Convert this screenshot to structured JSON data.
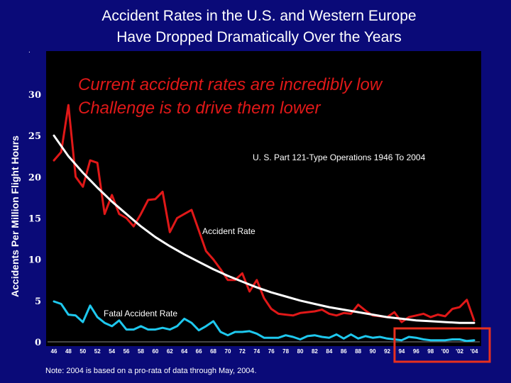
{
  "slide": {
    "title_line1": "Accident Rates in the U.S. and Western Europe",
    "title_line2": "Have Dropped Dramatically Over the Years",
    "mark": "."
  },
  "colors": {
    "background": "#0a0a78",
    "plot_background": "#000000",
    "accident_rate": "#e01818",
    "trend": "#ffffff",
    "fatal_rate": "#1ec8ee",
    "highlight_box": "#e8301e",
    "callout_text": "#e01818"
  },
  "chart_data": {
    "type": "line",
    "ylabel": "Accidents Per Million Flight Hours",
    "xlabel": "",
    "ylim": [
      0,
      30
    ],
    "yticks": [
      "0",
      "5",
      "10",
      "15",
      "20",
      "25",
      "30"
    ],
    "x_range": [
      1946,
      2004
    ],
    "xtick_labels": [
      "46",
      "48",
      "50",
      "52",
      "54",
      "56",
      "58",
      "60",
      "62",
      "64",
      "66",
      "68",
      "70",
      "72",
      "74",
      "76",
      "78",
      "80",
      "82",
      "84",
      "86",
      "88",
      "90",
      "92",
      "94",
      "96",
      "98",
      "'00",
      "'02",
      "'04"
    ],
    "callout_line1": "Current accident rates are incredibly low",
    "callout_line2": "Challenge is to drive them lower",
    "subtitle": "U. S. Part 121-Type Operations 1946 To 2004",
    "accident_label": "Accident Rate",
    "fatal_label": "Fatal Accident Rate",
    "note": "Note: 2004 is based on a pro-rata of data through May, 2004.",
    "highlight_years": [
      1994,
      2004
    ],
    "series": [
      {
        "key": "accident_rate",
        "x": [
          1946,
          1947,
          1948,
          1949,
          1950,
          1951,
          1952,
          1953,
          1954,
          1955,
          1956,
          1957,
          1958,
          1959,
          1960,
          1961,
          1962,
          1963,
          1964,
          1965,
          1966,
          1967,
          1968,
          1969,
          1970,
          1971,
          1972,
          1973,
          1974,
          1975,
          1976,
          1977,
          1978,
          1979,
          1980,
          1981,
          1982,
          1983,
          1984,
          1985,
          1986,
          1987,
          1988,
          1989,
          1990,
          1991,
          1992,
          1993,
          1994,
          1995,
          1996,
          1997,
          1998,
          1999,
          2000,
          2001,
          2002,
          2003,
          2004
        ],
        "values": [
          22.0,
          23.0,
          28.7,
          20.0,
          18.8,
          22.0,
          21.7,
          15.5,
          17.8,
          15.5,
          15.0,
          14.0,
          15.5,
          17.2,
          17.3,
          18.2,
          13.3,
          15.0,
          15.5,
          16.0,
          13.5,
          11.0,
          10.0,
          8.8,
          7.5,
          7.5,
          8.3,
          6.1,
          7.5,
          5.3,
          4.0,
          3.4,
          3.3,
          3.2,
          3.5,
          3.6,
          3.7,
          3.9,
          3.4,
          3.2,
          3.5,
          3.4,
          4.5,
          3.8,
          3.2,
          3.1,
          3.0,
          3.6,
          2.4,
          3.0,
          3.2,
          3.4,
          3.0,
          3.3,
          3.1,
          4.0,
          4.2,
          5.1,
          2.6
        ]
      },
      {
        "key": "trend",
        "x": [
          1946,
          1948,
          1950,
          1952,
          1954,
          1956,
          1958,
          1960,
          1962,
          1964,
          1966,
          1968,
          1970,
          1972,
          1974,
          1976,
          1978,
          1980,
          1982,
          1984,
          1986,
          1988,
          1990,
          1992,
          1994,
          1996,
          1998,
          2000,
          2002,
          2004
        ],
        "values": [
          25.0,
          22.5,
          20.5,
          18.7,
          17.0,
          15.5,
          14.0,
          12.7,
          11.6,
          10.6,
          9.7,
          8.8,
          8.0,
          7.3,
          6.6,
          6.0,
          5.5,
          5.0,
          4.6,
          4.2,
          3.9,
          3.6,
          3.3,
          3.0,
          2.8,
          2.6,
          2.5,
          2.4,
          2.3,
          2.3
        ]
      },
      {
        "key": "fatal_rate",
        "x": [
          1946,
          1947,
          1948,
          1949,
          1950,
          1951,
          1952,
          1953,
          1954,
          1955,
          1956,
          1957,
          1958,
          1959,
          1960,
          1961,
          1962,
          1963,
          1964,
          1965,
          1966,
          1967,
          1968,
          1969,
          1970,
          1971,
          1972,
          1973,
          1974,
          1975,
          1976,
          1977,
          1978,
          1979,
          1980,
          1981,
          1982,
          1983,
          1984,
          1985,
          1986,
          1987,
          1988,
          1989,
          1990,
          1991,
          1992,
          1993,
          1994,
          1995,
          1996,
          1997,
          1998,
          1999,
          2000,
          2001,
          2002,
          2003,
          2004
        ],
        "values": [
          4.9,
          4.6,
          3.3,
          3.2,
          2.4,
          4.4,
          3.0,
          2.3,
          1.9,
          2.6,
          1.5,
          1.5,
          1.9,
          1.5,
          1.5,
          1.7,
          1.5,
          1.9,
          2.8,
          2.3,
          1.4,
          1.9,
          2.5,
          1.2,
          0.8,
          1.2,
          1.2,
          1.3,
          1.0,
          0.5,
          0.5,
          0.5,
          0.8,
          0.6,
          0.3,
          0.7,
          0.8,
          0.6,
          0.5,
          0.9,
          0.4,
          0.9,
          0.4,
          0.7,
          0.5,
          0.6,
          0.4,
          0.3,
          0.2,
          0.6,
          0.5,
          0.3,
          0.2,
          0.2,
          0.2,
          0.3,
          0.3,
          0.1,
          0.2
        ]
      }
    ]
  }
}
